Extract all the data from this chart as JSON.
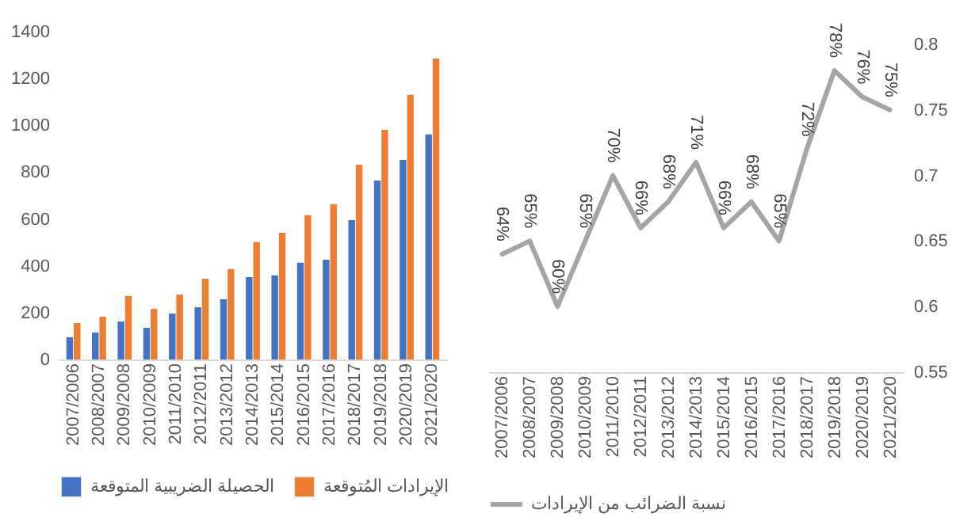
{
  "chart_data": [
    {
      "type": "bar",
      "categories": [
        "2007/2006",
        "2008/2007",
        "2009/2008",
        "2010/2009",
        "2011/2010",
        "2012/2011",
        "2013/2012",
        "2014/2013",
        "2015/2014",
        "2016/2015",
        "2017/2016",
        "2018/2017",
        "2019/2018",
        "2020/2019",
        "2021/2020"
      ],
      "series": [
        {
          "name": "الحصيلة الضريبية المتوقعة",
          "color": "#4472c4",
          "values": [
            95,
            115,
            162,
            135,
            196,
            223,
            257,
            352,
            359,
            413,
            426,
            595,
            764,
            852,
            961
          ]
        },
        {
          "name": "الإيرادات المُتوقعة",
          "color": "#ed7d31",
          "values": [
            156,
            183,
            271,
            216,
            277,
            345,
            386,
            501,
            541,
            616,
            663,
            832,
            981,
            1130,
            1285
          ]
        }
      ],
      "ylim": [
        0,
        1400
      ],
      "yticks": [
        0,
        200,
        400,
        600,
        800,
        1000,
        1200,
        1400
      ],
      "legend": "bottom"
    },
    {
      "type": "line",
      "categories": [
        "2007/2006",
        "2008/2007",
        "2009/2008",
        "2010/2009",
        "2011/2010",
        "2012/2011",
        "2013/2012",
        "2014/2013",
        "2015/2014",
        "2016/2015",
        "2017/2016",
        "2018/2017",
        "2019/2018",
        "2020/2019",
        "2021/2020"
      ],
      "series": [
        {
          "name": "نسبة الضرائب من الإيرادات",
          "color": "#a5a5a5",
          "values": [
            0.64,
            0.65,
            0.6,
            0.65,
            0.7,
            0.66,
            0.68,
            0.71,
            0.66,
            0.68,
            0.65,
            0.72,
            0.78,
            0.76,
            0.75
          ],
          "value_labels": [
            "64%",
            "65%",
            "60%",
            "65%",
            "70%",
            "66%",
            "68%",
            "71%",
            "66%",
            "68%",
            "65%",
            "72%",
            "78%",
            "76%",
            "75%"
          ]
        }
      ],
      "ylim": [
        0.55,
        0.8
      ],
      "yticks": [
        0.55,
        0.6,
        0.65,
        0.7,
        0.75,
        0.8
      ],
      "legend": "bottom"
    }
  ]
}
